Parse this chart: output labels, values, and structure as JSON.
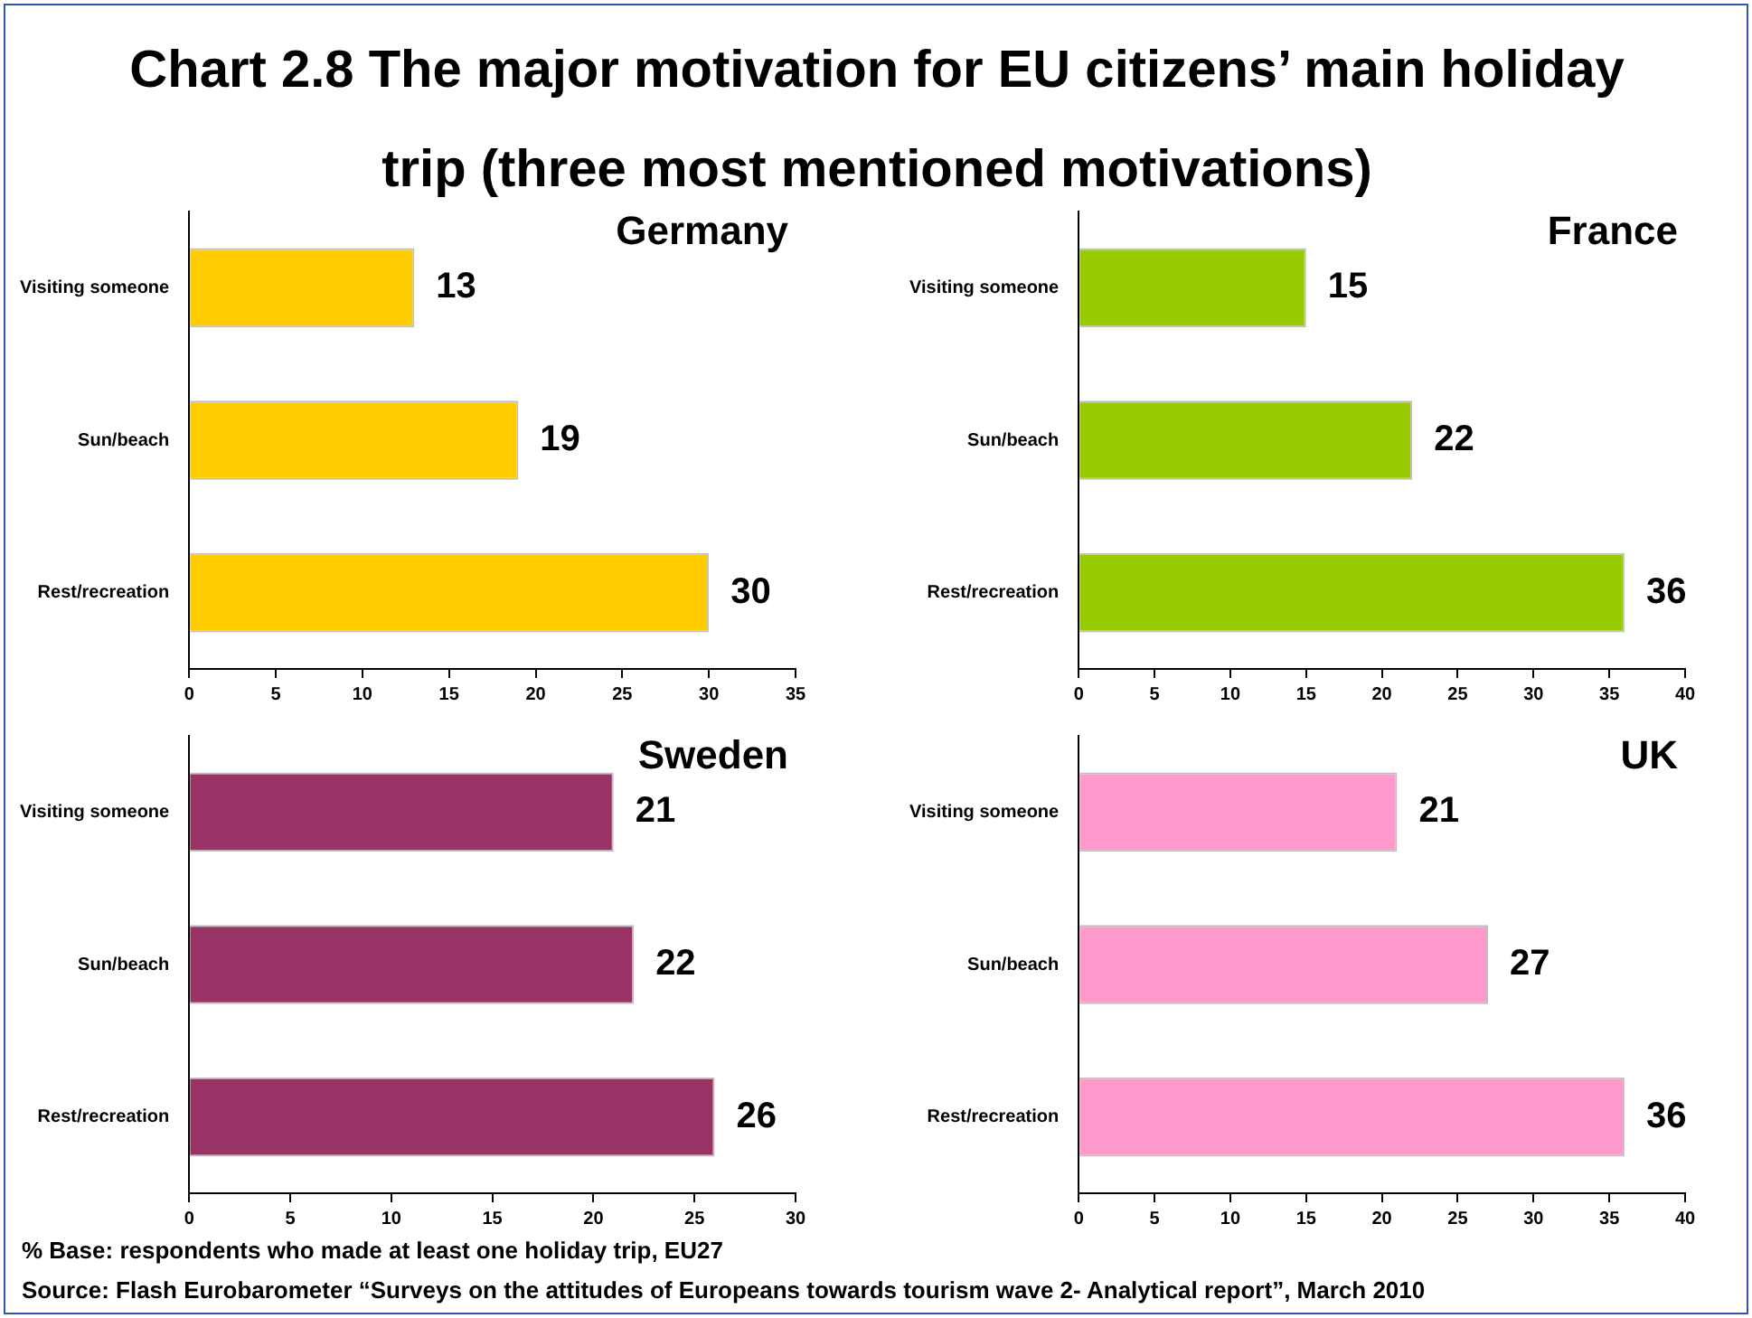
{
  "chart_data": [
    {
      "type": "other",
      "title": "Chart 2.8 The major motivation for EU citizens’ main holiday trip (three most mentioned motivations)",
      "annotations": [
        "% Base: respondents who made at least one holiday trip, EU27",
        "Source: Flash Eurobarometer “Surveys on the attitudes of Europeans towards tourism wave 2- Analytical report”, March 2010"
      ]
    },
    {
      "type": "bar",
      "orientation": "horizontal",
      "title": "Germany",
      "categories": [
        "Visiting someone",
        "Sun/beach",
        "Rest/recreation"
      ],
      "values": [
        13,
        19,
        30
      ],
      "color": "#ffcc00",
      "xlim": [
        0,
        35
      ],
      "xticks": [
        0,
        5,
        10,
        15,
        20,
        25,
        30,
        35
      ],
      "grid": false,
      "data_labels": true
    },
    {
      "type": "bar",
      "orientation": "horizontal",
      "title": "France",
      "categories": [
        "Visiting someone",
        "Sun/beach",
        "Rest/recreation"
      ],
      "values": [
        15,
        22,
        36
      ],
      "color": "#99cc00",
      "xlim": [
        0,
        40
      ],
      "xticks": [
        0,
        5,
        10,
        15,
        20,
        25,
        30,
        35,
        40
      ],
      "grid": false,
      "data_labels": true
    },
    {
      "type": "bar",
      "orientation": "horizontal",
      "title": "Sweden",
      "categories": [
        "Visiting someone",
        "Sun/beach",
        "Rest/recreation"
      ],
      "values": [
        21,
        22,
        26
      ],
      "color": "#993366",
      "xlim": [
        0,
        30
      ],
      "xticks": [
        0,
        5,
        10,
        15,
        20,
        25,
        30
      ],
      "grid": false,
      "data_labels": true
    },
    {
      "type": "bar",
      "orientation": "horizontal",
      "title": "UK",
      "categories": [
        "Visiting someone",
        "Sun/beach",
        "Rest/recreation"
      ],
      "values": [
        21,
        27,
        36
      ],
      "color": "#ff99cc",
      "xlim": [
        0,
        40
      ],
      "xticks": [
        0,
        5,
        10,
        15,
        20,
        25,
        30,
        35,
        40
      ],
      "grid": false,
      "data_labels": true
    }
  ]
}
